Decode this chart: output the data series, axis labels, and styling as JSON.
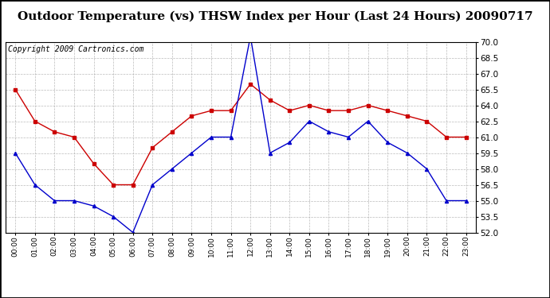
{
  "title": "Outdoor Temperature (vs) THSW Index per Hour (Last 24 Hours) 20090717",
  "copyright": "Copyright 2009 Cartronics.com",
  "hours": [
    "00:00",
    "01:00",
    "02:00",
    "03:00",
    "04:00",
    "05:00",
    "06:00",
    "07:00",
    "08:00",
    "09:00",
    "10:00",
    "11:00",
    "12:00",
    "13:00",
    "14:00",
    "15:00",
    "16:00",
    "17:00",
    "18:00",
    "19:00",
    "20:00",
    "21:00",
    "22:00",
    "23:00"
  ],
  "temp": [
    59.5,
    56.5,
    55.0,
    55.0,
    54.5,
    53.5,
    52.0,
    56.5,
    58.0,
    59.5,
    61.0,
    61.0,
    70.5,
    59.5,
    60.5,
    62.5,
    61.5,
    61.0,
    62.5,
    60.5,
    59.5,
    58.0,
    55.0,
    55.0
  ],
  "thsw": [
    65.5,
    62.5,
    61.5,
    61.0,
    58.5,
    56.5,
    56.5,
    60.0,
    61.5,
    63.0,
    63.5,
    63.5,
    66.0,
    64.5,
    63.5,
    64.0,
    63.5,
    63.5,
    64.0,
    63.5,
    63.0,
    62.5,
    61.0,
    61.0
  ],
  "temp_color": "#0000cc",
  "thsw_color": "#cc0000",
  "bg_color": "#ffffff",
  "grid_color": "#aaaaaa",
  "ylim_min": 52.0,
  "ylim_max": 70.0,
  "ytick_step": 1.5,
  "title_fontsize": 11,
  "copyright_fontsize": 7,
  "outer_border_color": "#000000"
}
